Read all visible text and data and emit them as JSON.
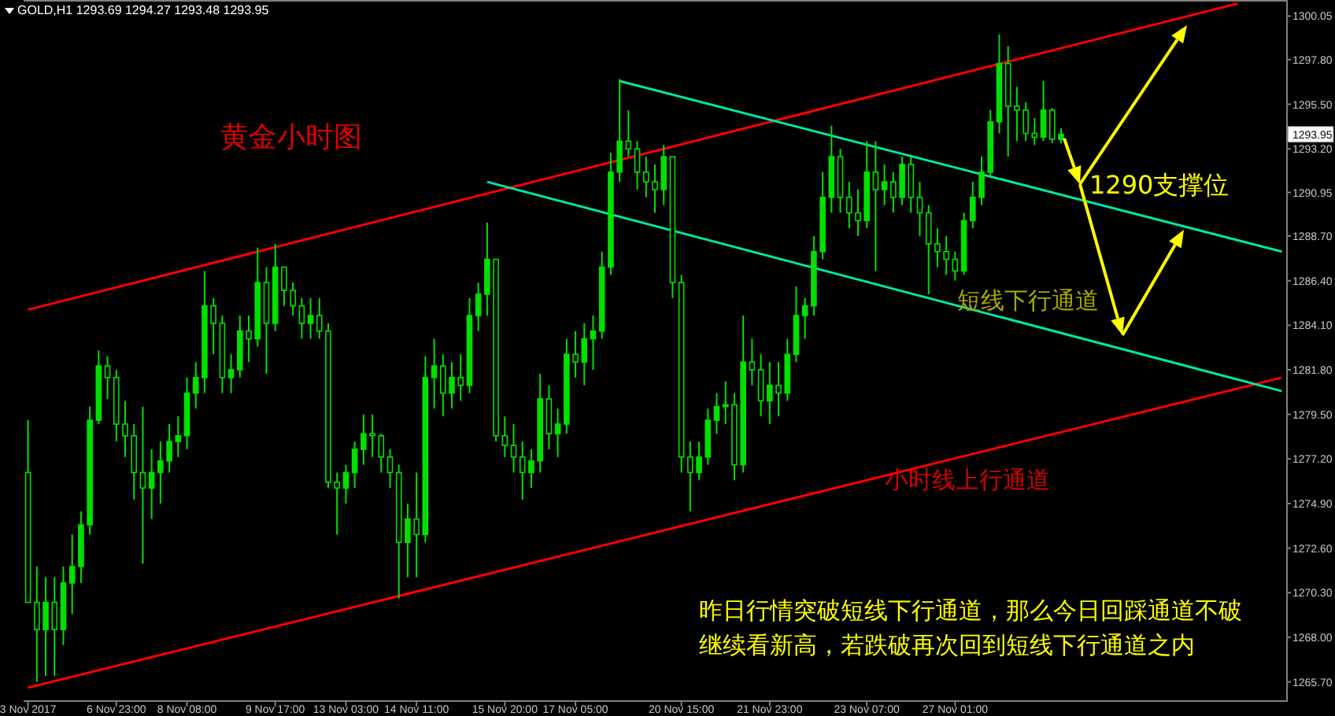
{
  "chart_data": {
    "type": "candlestick",
    "title": "GOLD,H1  1293.69 1294.27 1293.48 1293.95",
    "subtitle": "黄金小时图",
    "annotations": [
      "1290支撑位",
      "短线下行通道",
      "小时线上行通道",
      {
        "text": "1293.95",
        "y": 1293.95
      },
      "昨日行情突破短线下行通道，那么今日回踩通道不破",
      "继续看新高，若跌破再次回到短线下行通道之内"
    ],
    "color": "#00e000",
    "categories": [
      "3 Nov 2017",
      null,
      null,
      null,
      null,
      null,
      null,
      null,
      null,
      null,
      "6 Nov 23:00",
      null,
      null,
      null,
      null,
      null,
      null,
      null,
      "8 Nov 08:00",
      null,
      null,
      null,
      null,
      null,
      null,
      null,
      null,
      null,
      "9 Nov 17:00",
      null,
      null,
      null,
      null,
      null,
      null,
      null,
      "13 Nov 03:00",
      null,
      null,
      null,
      null,
      null,
      null,
      null,
      "14 Nov 11:00",
      null,
      null,
      null,
      null,
      null,
      null,
      null,
      null,
      null,
      "15 Nov 20:00",
      null,
      null,
      null,
      null,
      null,
      null,
      null,
      "17 Nov 05:00",
      null,
      null,
      null,
      null,
      null,
      null,
      null,
      null,
      null,
      null,
      null,
      "20 Nov 15:00",
      null,
      null,
      null,
      null,
      null,
      null,
      null,
      null,
      null,
      "21 Nov 23:00",
      null,
      null,
      null,
      null,
      null,
      null,
      null,
      null,
      null,
      null,
      "23 Nov 07:00",
      null,
      null,
      null,
      null,
      null,
      null,
      null,
      null,
      null,
      "27 Nov 01:00",
      null,
      null,
      null,
      null,
      null,
      null,
      null,
      null,
      null,
      null,
      null,
      null,
      null,
      null,
      null,
      null,
      null,
      null,
      null,
      null,
      null,
      null,
      null,
      null,
      null,
      null,
      null,
      null,
      null,
      null,
      null,
      null,
      null,
      null,
      null,
      null,
      null
    ],
    "ohlc": [
      [
        1276.5,
        1279.2,
        1269.8,
        1269.8
      ],
      [
        1269.8,
        1271.65,
        1265.7,
        1268.4
      ],
      [
        1268.4,
        1271.1,
        1266.0,
        1269.8
      ],
      [
        1269.8,
        1271.1,
        1266.0,
        1268.4
      ],
      [
        1268.4,
        1271.65,
        1267.6,
        1270.8
      ],
      [
        1270.8,
        1273.3,
        1269.2,
        1271.65
      ],
      [
        1271.65,
        1274.5,
        1270.8,
        1273.8
      ],
      [
        1273.8,
        1279.9,
        1273.3,
        1279.2
      ],
      [
        1279.2,
        1282.8,
        1279.0,
        1282.0
      ],
      [
        1282.0,
        1282.5,
        1280.3,
        1281.4
      ],
      [
        1281.4,
        1281.8,
        1278.1,
        1279.0
      ],
      [
        1279.0,
        1280.2,
        1277.3,
        1278.4
      ],
      [
        1278.4,
        1279.0,
        1275.1,
        1276.5
      ],
      [
        1276.5,
        1279.9,
        1271.8,
        1275.7
      ],
      [
        1275.7,
        1277.7,
        1274.1,
        1276.5
      ],
      [
        1276.5,
        1278.1,
        1274.9,
        1277.1
      ],
      [
        1277.1,
        1279.0,
        1276.5,
        1278.1
      ],
      [
        1278.1,
        1279.4,
        1277.3,
        1278.4
      ],
      [
        1278.4,
        1281.4,
        1277.7,
        1280.6
      ],
      [
        1280.6,
        1282.2,
        1279.8,
        1281.4
      ],
      [
        1281.4,
        1286.9,
        1280.6,
        1285.1
      ],
      [
        1285.1,
        1285.5,
        1282.6,
        1284.2
      ],
      [
        1284.2,
        1284.6,
        1280.6,
        1281.4
      ],
      [
        1281.4,
        1282.6,
        1280.6,
        1281.8
      ],
      [
        1281.8,
        1284.6,
        1281.4,
        1283.8
      ],
      [
        1283.8,
        1284.6,
        1282.2,
        1283.4
      ],
      [
        1283.4,
        1288.1,
        1283.0,
        1286.3
      ],
      [
        1286.3,
        1287.1,
        1281.6,
        1284.2
      ],
      [
        1284.2,
        1288.3,
        1283.8,
        1287.1
      ],
      [
        1287.1,
        1287.1,
        1285.1,
        1285.9
      ],
      [
        1285.9,
        1286.3,
        1284.6,
        1285.1
      ],
      [
        1285.1,
        1285.5,
        1283.4,
        1284.2
      ],
      [
        1284.2,
        1285.5,
        1283.4,
        1284.6
      ],
      [
        1284.6,
        1285.5,
        1283.4,
        1283.8
      ],
      [
        1283.8,
        1284.2,
        1275.7,
        1276.0
      ],
      [
        1276.0,
        1276.5,
        1273.3,
        1275.7
      ],
      [
        1275.7,
        1276.9,
        1274.9,
        1276.5
      ],
      [
        1276.5,
        1278.1,
        1275.7,
        1277.7
      ],
      [
        1277.7,
        1279.5,
        1276.9,
        1278.5
      ],
      [
        1278.5,
        1279.5,
        1277.3,
        1278.4
      ],
      [
        1278.4,
        1278.5,
        1276.5,
        1277.3
      ],
      [
        1277.3,
        1277.7,
        1275.7,
        1276.5
      ],
      [
        1276.5,
        1276.9,
        1270.0,
        1272.9
      ],
      [
        1272.9,
        1274.9,
        1271.1,
        1274.1
      ],
      [
        1274.1,
        1276.5,
        1271.1,
        1273.3
      ],
      [
        1273.3,
        1282.5,
        1272.9,
        1281.4
      ],
      [
        1281.4,
        1283.4,
        1279.8,
        1282.0
      ],
      [
        1282.0,
        1282.6,
        1279.4,
        1280.6
      ],
      [
        1280.6,
        1282.2,
        1279.8,
        1281.4
      ],
      [
        1281.4,
        1282.6,
        1280.2,
        1281.0
      ],
      [
        1281.0,
        1285.5,
        1280.6,
        1284.6
      ],
      [
        1284.6,
        1286.3,
        1283.8,
        1285.7
      ],
      [
        1285.7,
        1289.4,
        1284.6,
        1287.5
      ],
      [
        1287.5,
        1287.5,
        1278.1,
        1278.4
      ],
      [
        1278.4,
        1279.4,
        1277.3,
        1277.9
      ],
      [
        1277.9,
        1279.0,
        1276.5,
        1277.3
      ],
      [
        1277.3,
        1278.1,
        1275.1,
        1276.5
      ],
      [
        1276.5,
        1277.7,
        1275.7,
        1277.1
      ],
      [
        1277.1,
        1281.6,
        1276.5,
        1280.3
      ],
      [
        1280.3,
        1281.0,
        1277.7,
        1278.5
      ],
      [
        1278.5,
        1279.8,
        1277.3,
        1279.0
      ],
      [
        1279.0,
        1283.4,
        1278.5,
        1282.6
      ],
      [
        1282.6,
        1283.8,
        1281.4,
        1282.2
      ],
      [
        1282.2,
        1284.2,
        1281.0,
        1283.4
      ],
      [
        1283.4,
        1284.6,
        1281.8,
        1283.8
      ],
      [
        1283.8,
        1287.9,
        1283.4,
        1287.1
      ],
      [
        1287.1,
        1293.0,
        1286.7,
        1292.0
      ],
      [
        1292.0,
        1296.8,
        1291.5,
        1293.6
      ],
      [
        1293.6,
        1295.2,
        1292.8,
        1293.2
      ],
      [
        1293.2,
        1293.6,
        1291.1,
        1292.0
      ],
      [
        1292.0,
        1292.8,
        1290.7,
        1291.5
      ],
      [
        1291.5,
        1292.4,
        1289.9,
        1291.1
      ],
      [
        1291.1,
        1293.4,
        1290.3,
        1292.8
      ],
      [
        1292.8,
        1292.8,
        1285.5,
        1286.3
      ],
      [
        1286.3,
        1286.7,
        1276.5,
        1277.3
      ],
      [
        1277.3,
        1278.1,
        1274.5,
        1276.5
      ],
      [
        1276.5,
        1278.1,
        1276.1,
        1277.3
      ],
      [
        1277.3,
        1279.8,
        1276.9,
        1279.2
      ],
      [
        1279.2,
        1280.6,
        1278.5,
        1279.9
      ],
      [
        1279.9,
        1281.2,
        1279.0,
        1280.0
      ],
      [
        1280.0,
        1280.6,
        1276.1,
        1276.9
      ],
      [
        1276.9,
        1284.6,
        1276.5,
        1282.2
      ],
      [
        1282.2,
        1283.4,
        1281.0,
        1281.8
      ],
      [
        1281.8,
        1282.6,
        1279.4,
        1280.2
      ],
      [
        1280.2,
        1282.2,
        1279.0,
        1281.0
      ],
      [
        1281.0,
        1282.2,
        1279.4,
        1280.6
      ],
      [
        1280.6,
        1283.4,
        1280.2,
        1282.6
      ],
      [
        1282.6,
        1286.1,
        1282.2,
        1284.6
      ],
      [
        1284.6,
        1285.5,
        1283.4,
        1285.1
      ],
      [
        1285.1,
        1288.7,
        1284.6,
        1287.9
      ],
      [
        1287.9,
        1292.0,
        1287.5,
        1290.7
      ],
      [
        1290.7,
        1294.4,
        1289.9,
        1292.8
      ],
      [
        1292.8,
        1293.2,
        1289.9,
        1290.7
      ],
      [
        1290.7,
        1291.5,
        1289.1,
        1289.9
      ],
      [
        1289.9,
        1291.1,
        1288.7,
        1289.5
      ],
      [
        1289.5,
        1293.6,
        1289.1,
        1292.0
      ],
      [
        1292.0,
        1293.6,
        1286.9,
        1291.1
      ],
      [
        1291.1,
        1292.4,
        1290.3,
        1291.5
      ],
      [
        1291.5,
        1292.0,
        1289.9,
        1290.7
      ],
      [
        1290.7,
        1292.8,
        1290.3,
        1292.4
      ],
      [
        1292.4,
        1292.8,
        1289.9,
        1290.7
      ],
      [
        1290.7,
        1291.5,
        1288.7,
        1289.9
      ],
      [
        1289.9,
        1290.3,
        1285.7,
        1288.3
      ],
      [
        1288.3,
        1289.1,
        1287.1,
        1287.9
      ],
      [
        1287.9,
        1288.7,
        1286.7,
        1287.5
      ],
      [
        1287.5,
        1287.9,
        1286.4,
        1286.9
      ],
      [
        1286.9,
        1289.9,
        1286.7,
        1289.5
      ],
      [
        1289.5,
        1291.5,
        1289.1,
        1290.7
      ],
      [
        1290.7,
        1292.8,
        1290.3,
        1292.0
      ],
      [
        1292.0,
        1295.2,
        1291.8,
        1294.6
      ],
      [
        1294.6,
        1299.1,
        1294.0,
        1297.6
      ],
      [
        1297.6,
        1298.5,
        1292.8,
        1295.4
      ],
      [
        1295.4,
        1296.4,
        1293.6,
        1295.2
      ],
      [
        1295.2,
        1295.6,
        1293.6,
        1294.0
      ],
      [
        1294.0,
        1294.8,
        1293.4,
        1293.8
      ],
      [
        1293.8,
        1296.7,
        1293.6,
        1295.2
      ],
      [
        1295.2,
        1295.3,
        1293.5,
        1293.7
      ],
      [
        1293.69,
        1294.27,
        1293.48,
        1293.95
      ],
      null,
      null,
      null,
      null,
      null,
      null,
      null,
      null,
      null,
      null,
      null,
      null,
      null,
      null,
      null,
      null,
      null,
      null,
      null,
      null,
      null,
      null,
      null,
      null,
      null
    ],
    "series": [
      {
        "type": "line",
        "color": "#ff0000",
        "values": [
          1284.9,
          null,
          null,
          null,
          null,
          null,
          null,
          null,
          null,
          null,
          null,
          null,
          null,
          null,
          null,
          null,
          null,
          null,
          null,
          null,
          null,
          null,
          null,
          null,
          null,
          null,
          null,
          null,
          null,
          null,
          null,
          null,
          null,
          null,
          null,
          null,
          null,
          null,
          null,
          null,
          null,
          null,
          null,
          null,
          null,
          null,
          null,
          null,
          null,
          null,
          null,
          null,
          null,
          null,
          null,
          null,
          null,
          null,
          null,
          null,
          null,
          null,
          null,
          null,
          null,
          null,
          null,
          null,
          null,
          null,
          null,
          null,
          null,
          null,
          null,
          null,
          null,
          null,
          null,
          null,
          null,
          null,
          null,
          null,
          null,
          null,
          null,
          null,
          null,
          null,
          null,
          null,
          null,
          null,
          null,
          null,
          null,
          null,
          null,
          null,
          null,
          null,
          null,
          null,
          null,
          null,
          null,
          null,
          null,
          null,
          null,
          null,
          null,
          null,
          null,
          null,
          null,
          null,
          null,
          null,
          null,
          null,
          null,
          null,
          null,
          null,
          null,
          null,
          null,
          null,
          null,
          null,
          null,
          null,
          null,
          null,
          null,
          1300.7,
          null,
          null,
          null,
          null,
          null
        ]
      },
      {
        "type": "line",
        "color": "#ff0000",
        "values": [
          1265.4,
          null,
          null,
          null,
          null,
          null,
          null,
          null,
          null,
          null,
          null,
          null,
          null,
          null,
          null,
          null,
          null,
          null,
          null,
          null,
          null,
          null,
          null,
          null,
          null,
          null,
          null,
          null,
          null,
          null,
          null,
          null,
          null,
          null,
          null,
          null,
          null,
          null,
          null,
          null,
          null,
          null,
          null,
          null,
          null,
          null,
          null,
          null,
          null,
          null,
          null,
          null,
          null,
          null,
          null,
          null,
          null,
          null,
          null,
          null,
          null,
          null,
          null,
          null,
          null,
          null,
          null,
          null,
          null,
          null,
          null,
          null,
          null,
          null,
          null,
          null,
          null,
          null,
          null,
          null,
          null,
          null,
          null,
          null,
          null,
          null,
          null,
          null,
          null,
          null,
          null,
          null,
          null,
          null,
          null,
          null,
          null,
          null,
          null,
          null,
          null,
          null,
          null,
          null,
          null,
          null,
          null,
          null,
          null,
          null,
          null,
          null,
          null,
          null,
          null,
          null,
          null,
          null,
          null,
          null,
          null,
          null,
          null,
          null,
          null,
          null,
          null,
          null,
          null,
          null,
          null,
          null,
          null,
          null,
          null,
          null,
          null,
          null,
          null,
          null,
          null,
          null,
          1281.4
        ]
      },
      {
        "type": "line",
        "color": "#00e8a0",
        "values": [
          null,
          null,
          null,
          null,
          null,
          null,
          null,
          null,
          null,
          null,
          null,
          null,
          null,
          null,
          null,
          null,
          null,
          null,
          null,
          null,
          null,
          null,
          null,
          null,
          null,
          null,
          null,
          null,
          null,
          null,
          null,
          null,
          null,
          null,
          null,
          null,
          null,
          null,
          null,
          null,
          null,
          null,
          null,
          null,
          null,
          null,
          null,
          null,
          null,
          null,
          null,
          null,
          null,
          null,
          null,
          null,
          null,
          null,
          null,
          null,
          null,
          null,
          null,
          null,
          null,
          null,
          null,
          1296.7,
          null,
          null,
          null,
          null,
          null,
          null,
          null,
          null,
          null,
          null,
          null,
          null,
          null,
          null,
          null,
          null,
          null,
          null,
          null,
          null,
          null,
          null,
          null,
          null,
          null,
          null,
          null,
          null,
          null,
          null,
          null,
          null,
          null,
          null,
          null,
          null,
          null,
          null,
          null,
          null,
          null,
          null,
          null,
          null,
          null,
          null,
          null,
          null,
          null,
          null,
          null,
          null,
          null,
          null,
          null,
          null,
          null,
          null,
          null,
          null,
          null,
          null,
          null,
          null,
          null,
          null,
          null,
          null,
          null,
          null,
          null,
          null,
          null,
          null,
          1287.9
        ]
      },
      {
        "type": "line",
        "color": "#00e8a0",
        "values": [
          null,
          null,
          null,
          null,
          null,
          null,
          null,
          null,
          null,
          null,
          null,
          null,
          null,
          null,
          null,
          null,
          null,
          null,
          null,
          null,
          null,
          null,
          null,
          null,
          null,
          null,
          null,
          null,
          null,
          null,
          null,
          null,
          null,
          null,
          null,
          null,
          null,
          null,
          null,
          null,
          null,
          null,
          null,
          null,
          null,
          null,
          null,
          null,
          null,
          null,
          null,
          null,
          1291.5,
          null,
          null,
          null,
          null,
          null,
          null,
          null,
          null,
          null,
          null,
          null,
          null,
          null,
          null,
          null,
          null,
          null,
          null,
          null,
          null,
          null,
          null,
          null,
          null,
          null,
          null,
          null,
          null,
          null,
          null,
          null,
          null,
          null,
          null,
          null,
          null,
          null,
          null,
          null,
          null,
          null,
          null,
          null,
          null,
          null,
          null,
          null,
          null,
          null,
          null,
          null,
          null,
          null,
          null,
          null,
          null,
          null,
          null,
          null,
          null,
          null,
          null,
          null,
          null,
          null,
          null,
          null,
          null,
          null,
          null,
          null,
          null,
          null,
          null,
          null,
          null,
          null,
          null,
          null,
          null,
          null,
          null,
          null,
          null,
          null,
          null,
          null,
          null,
          null,
          1280.7
        ]
      }
    ],
    "ylim": [
      1264.75,
      1300.8
    ],
    "yticks": [
      {
        "value": 1300.05,
        "label": "1300.05"
      },
      {
        "value": 1297.8,
        "label": "1297.80"
      },
      {
        "value": 1295.5,
        "label": "1295.50"
      },
      {
        "value": 1293.2,
        "label": "1293.20"
      },
      {
        "value": 1290.95,
        "label": "1290.95"
      },
      {
        "value": 1288.7,
        "label": "1288.70"
      },
      {
        "value": 1286.4,
        "label": "1286.40"
      },
      {
        "value": 1284.1,
        "label": "1284.10"
      },
      {
        "value": 1281.8,
        "label": "1281.80"
      },
      {
        "value": 1279.5,
        "label": "1279.50"
      },
      {
        "value": 1277.2,
        "label": "1277.20"
      },
      {
        "value": 1274.9,
        "label": "1274.90"
      },
      {
        "value": 1272.6,
        "label": "1272.60"
      },
      {
        "value": 1270.3,
        "label": "1270.30"
      },
      {
        "value": 1268.0,
        "label": "1268.00"
      },
      {
        "value": 1265.7,
        "label": "1265.70"
      }
    ]
  }
}
